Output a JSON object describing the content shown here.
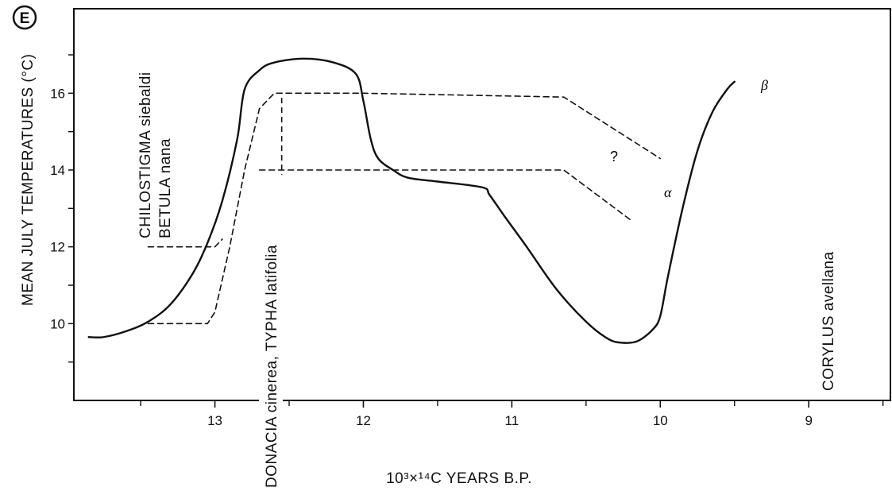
{
  "panel_badge": "E",
  "chart_data": {
    "type": "line",
    "xlabel": "10³×¹⁴C YEARS B.P.",
    "ylabel": "MEAN JULY TEMPERATURES (°C)",
    "x_ticks": [
      13,
      12,
      11,
      10,
      9
    ],
    "y_ticks": [
      10,
      12,
      14,
      16
    ],
    "xlim": [
      13.95,
      8.45
    ],
    "ylim": [
      8.0,
      18.2
    ],
    "x_reversed": true,
    "grid": false,
    "series": [
      {
        "name": "β",
        "style": "solid",
        "x": [
          13.85,
          13.75,
          13.6,
          13.45,
          13.3,
          13.15,
          13.05,
          12.95,
          12.85,
          12.8,
          12.7,
          12.6,
          12.4,
          12.2,
          12.05,
          12.0,
          11.95,
          11.9,
          11.8,
          11.7,
          11.5,
          11.2,
          11.15,
          11.05,
          10.9,
          10.7,
          10.5,
          10.35,
          10.25,
          10.15,
          10.05,
          10.0,
          9.95,
          9.85,
          9.75,
          9.65,
          9.55,
          9.5
        ],
        "y": [
          9.65,
          9.65,
          9.8,
          10.05,
          10.5,
          11.3,
          12.1,
          13.2,
          14.8,
          16.1,
          16.6,
          16.8,
          16.9,
          16.8,
          16.5,
          15.8,
          14.8,
          14.3,
          14.0,
          13.8,
          13.7,
          13.55,
          13.35,
          12.8,
          12.0,
          10.9,
          10.05,
          9.6,
          9.5,
          9.55,
          9.85,
          10.2,
          11.2,
          13.0,
          14.5,
          15.5,
          16.1,
          16.3
        ]
      },
      {
        "name": "?",
        "style": "dashed",
        "x": [
          13.45,
          13.05,
          13.0,
          12.9,
          12.8,
          12.7,
          12.6,
          12.5,
          12.0,
          10.65,
          10.0
        ],
        "y": [
          10.0,
          10.0,
          10.3,
          12.0,
          14.0,
          15.6,
          16.0,
          16.0,
          16.0,
          15.9,
          14.3
        ]
      },
      {
        "name": "α",
        "style": "dashed",
        "x": [
          12.7,
          12.5,
          10.65,
          10.2
        ],
        "y": [
          14.0,
          14.0,
          14.0,
          12.7
        ]
      },
      {
        "name": "",
        "style": "dashed",
        "x": [
          13.45,
          13.0,
          12.95
        ],
        "y": [
          12.0,
          12.0,
          12.2
        ]
      }
    ],
    "markers": [
      {
        "x": 12.55,
        "y_from": 13.5,
        "y_to": 16.0
      }
    ],
    "vertical_labels": [
      {
        "line1": "CHILOSTIGMA siebaldi",
        "line2": "BETULA nana"
      },
      {
        "line1": "DONACIA cinerea, TYPHA latifolia"
      },
      {
        "line1": "CORYLUS avellana"
      }
    ]
  }
}
